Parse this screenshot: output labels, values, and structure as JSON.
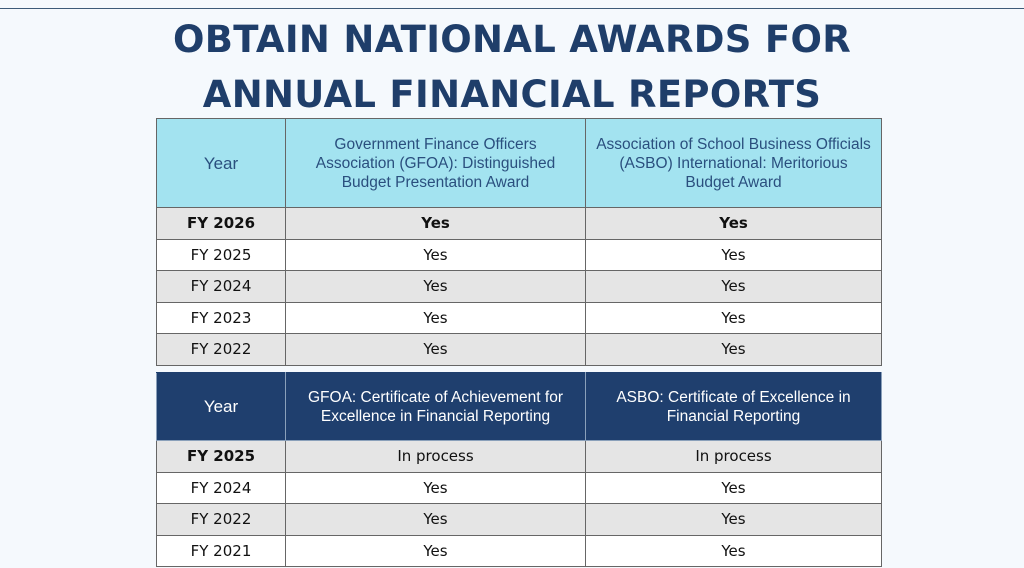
{
  "title": {
    "line1": "OBTAIN NATIONAL AWARDS FOR",
    "line2": "ANNUAL FINANCIAL REPORTS"
  },
  "budget_table": {
    "headers": [
      "Year",
      "Government Finance Officers Association (GFOA): Distinguished Budget Presentation Award",
      "Association of School Business Officials (ASBO) International: Meritorious Budget Award"
    ],
    "rows": [
      [
        "FY 2026",
        "Yes",
        "Yes"
      ],
      [
        "FY 2025",
        "Yes",
        "Yes"
      ],
      [
        "FY 2024",
        "Yes",
        "Yes"
      ],
      [
        "FY 2023",
        "Yes",
        "Yes"
      ],
      [
        "FY 2022",
        "Yes",
        "Yes"
      ]
    ]
  },
  "reporting_table": {
    "headers": [
      "Year",
      "GFOA: Certificate of Achievement for Excellence in Financial Reporting",
      "ASBO: Certificate of Excellence in Financial Reporting"
    ],
    "rows": [
      [
        "FY 2025",
        "In process",
        "In process"
      ],
      [
        "FY 2024",
        "Yes",
        "Yes"
      ],
      [
        "FY 2022",
        "Yes",
        "Yes"
      ],
      [
        "FY 2021",
        "Yes",
        "Yes"
      ]
    ]
  }
}
